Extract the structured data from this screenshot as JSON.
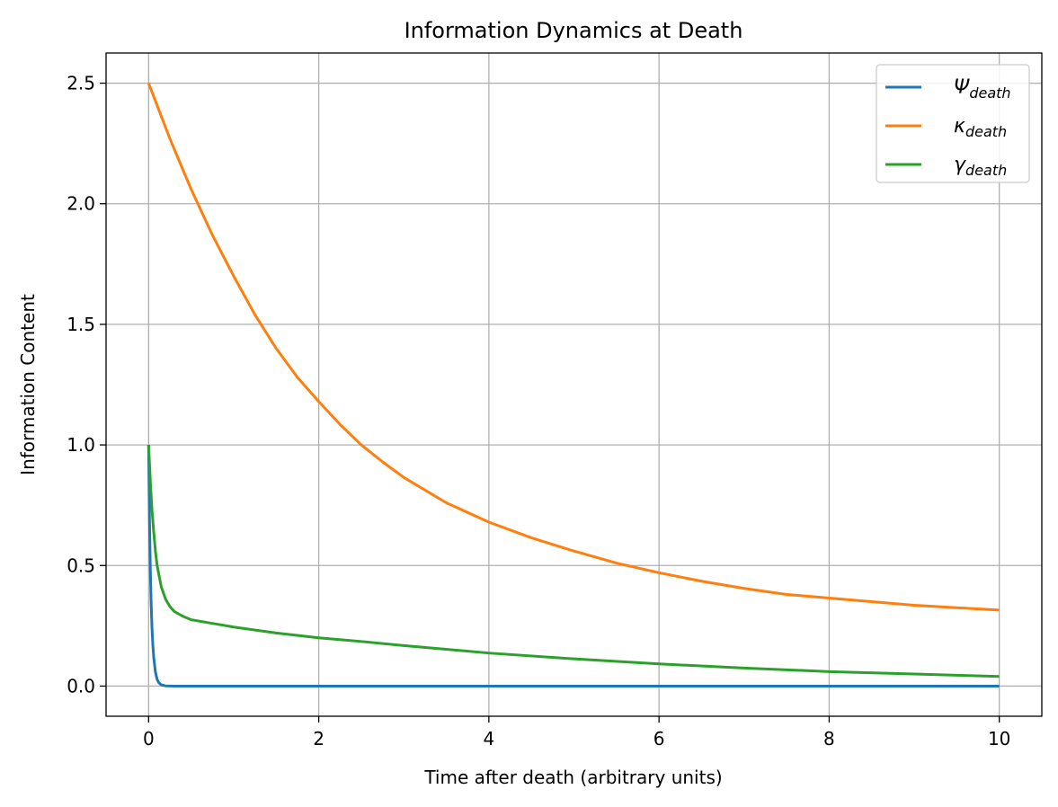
{
  "chart_data": {
    "type": "line",
    "title": "Information Dynamics at Death",
    "xlabel": "Time after death (arbitrary units)",
    "ylabel": "Information Content",
    "xlim": [
      -0.5,
      10.5
    ],
    "ylim": [
      -0.125,
      2.625
    ],
    "xticks": [
      0,
      2,
      4,
      6,
      8,
      10
    ],
    "xtick_labels": [
      "0",
      "2",
      "4",
      "6",
      "8",
      "10"
    ],
    "yticks": [
      0.0,
      0.5,
      1.0,
      1.5,
      2.0,
      2.5
    ],
    "ytick_labels": [
      "0.0",
      "0.5",
      "1.0",
      "1.5",
      "2.0",
      "2.5"
    ],
    "grid": true,
    "legend_position": "upper right",
    "series": [
      {
        "name": "Ψdeath",
        "symbol": "Ψ",
        "subscript": "death",
        "color": "#1f77b4",
        "x": [
          0,
          0.01,
          0.02,
          0.03,
          0.04,
          0.05,
          0.06,
          0.08,
          0.1,
          0.12,
          0.15,
          0.2,
          0.3,
          0.5,
          1,
          2,
          4,
          6,
          8,
          10
        ],
        "y": [
          1.0,
          0.7,
          0.49,
          0.34,
          0.24,
          0.17,
          0.12,
          0.058,
          0.028,
          0.014,
          0.005,
          0.001,
          0.0,
          0.0,
          0.0,
          0.0,
          0.0,
          0.0,
          0.0,
          0.0
        ]
      },
      {
        "name": "κdeath",
        "symbol": "κ",
        "subscript": "death",
        "color": "#ff7f0e",
        "x": [
          0,
          0.25,
          0.5,
          0.75,
          1.0,
          1.25,
          1.5,
          1.75,
          2.0,
          2.25,
          2.5,
          2.75,
          3.0,
          3.5,
          4.0,
          4.5,
          5.0,
          5.5,
          6.0,
          6.5,
          7.0,
          7.5,
          8.0,
          8.5,
          9.0,
          9.5,
          10.0
        ],
        "y": [
          2.5,
          2.27,
          2.06,
          1.87,
          1.7,
          1.54,
          1.4,
          1.28,
          1.18,
          1.085,
          1.0,
          0.93,
          0.865,
          0.76,
          0.68,
          0.615,
          0.56,
          0.51,
          0.47,
          0.435,
          0.405,
          0.38,
          0.365,
          0.35,
          0.335,
          0.325,
          0.315
        ]
      },
      {
        "name": "γdeath",
        "symbol": "γ",
        "subscript": "death",
        "color": "#2ca02c",
        "x": [
          0,
          0.02,
          0.04,
          0.06,
          0.08,
          0.1,
          0.15,
          0.2,
          0.25,
          0.3,
          0.4,
          0.5,
          0.75,
          1.0,
          1.5,
          2.0,
          2.5,
          3.0,
          4.0,
          5.0,
          6.0,
          7.0,
          8.0,
          9.0,
          10.0
        ],
        "y": [
          1.0,
          0.85,
          0.73,
          0.64,
          0.56,
          0.5,
          0.41,
          0.36,
          0.33,
          0.31,
          0.29,
          0.275,
          0.26,
          0.245,
          0.22,
          0.2,
          0.185,
          0.168,
          0.137,
          0.113,
          0.092,
          0.075,
          0.06,
          0.05,
          0.04
        ]
      }
    ]
  }
}
